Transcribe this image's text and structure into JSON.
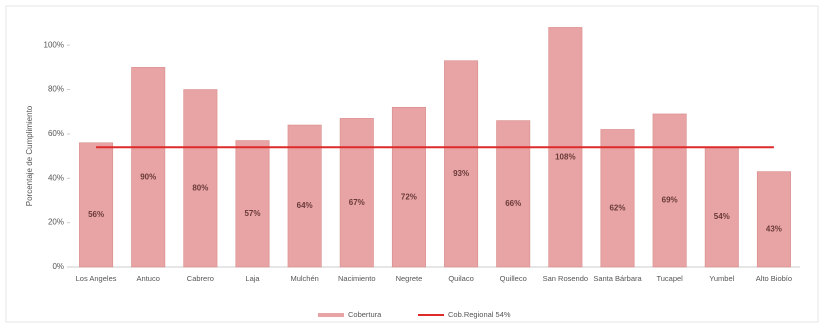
{
  "chart_data": {
    "type": "bar",
    "y_label": "Porcentaje de Cumplimiento",
    "categories": [
      "Los Angeles",
      "Antuco",
      "Cabrero",
      "Laja",
      "Mulchén",
      "Nacimiento",
      "Negrete",
      "Quilaco",
      "Quilleco",
      "San Rosendo",
      "Santa Bárbara",
      "Tucapel",
      "Yumbel",
      "Alto Biobío"
    ],
    "series": [
      {
        "name": "Cobertura",
        "type": "bar",
        "color": "#e8a4a4",
        "values": [
          56,
          90,
          80,
          57,
          64,
          67,
          72,
          93,
          66,
          108,
          62,
          69,
          54,
          43
        ],
        "value_labels": [
          "56%",
          "90%",
          "80%",
          "57%",
          "64%",
          "67%",
          "72%",
          "93%",
          "66%",
          "108%",
          "62%",
          "69%",
          "54%",
          "43%"
        ]
      },
      {
        "name": "Cob.Regional 54%",
        "type": "line",
        "color": "#dd2a2a",
        "values": [
          54,
          54,
          54,
          54,
          54,
          54,
          54,
          54,
          54,
          54,
          54,
          54,
          54,
          54
        ]
      }
    ],
    "ylim": [
      0,
      110
    ],
    "yticks": [
      {
        "value": 0,
        "label": "0%"
      },
      {
        "value": 20,
        "label": "20%"
      },
      {
        "value": 40,
        "label": "40%"
      },
      {
        "value": 60,
        "label": "60%"
      },
      {
        "value": 80,
        "label": "80%"
      },
      {
        "value": 100,
        "label": "100%"
      }
    ],
    "legend": "bottom"
  }
}
